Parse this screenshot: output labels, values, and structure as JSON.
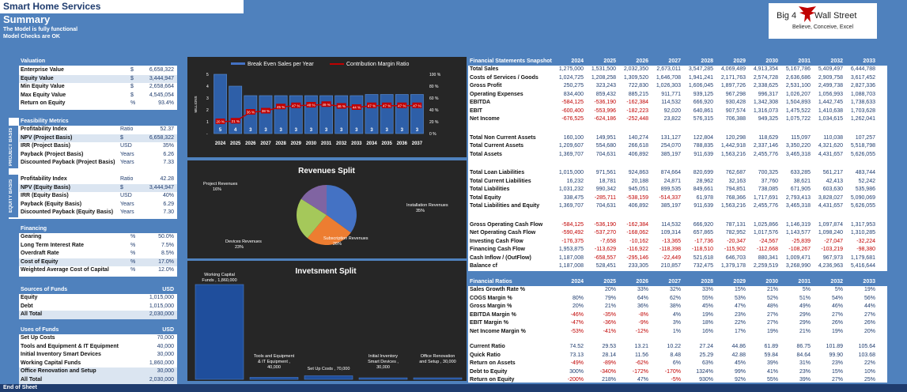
{
  "header": {
    "title": "Smart Home Services",
    "subtitle": "Summary",
    "note1": "The Model is fully functional",
    "note2": "Model Checks are OK"
  },
  "logo": {
    "word1": "Big 4",
    "word2": "Wall Street",
    "tagline": "Believe, Conceive, Excel"
  },
  "left": {
    "valuation": {
      "title": "Valuation",
      "rows": [
        {
          "label": "Enterprise Value",
          "unit": "$",
          "value": "6,658,322"
        },
        {
          "label": "Equity Value",
          "unit": "$",
          "value": "3,444,947"
        },
        {
          "label": "Min Equity Value",
          "unit": "$",
          "value": "2,658,664"
        },
        {
          "label": "Max Equity Value",
          "unit": "$",
          "value": "4,545,054"
        },
        {
          "label": "Return on Equity",
          "unit": "%",
          "value": "93.4%"
        }
      ]
    },
    "feasibility": {
      "title": "Feasibility Metrics",
      "project_tab": "PROJECT BASIS",
      "equity_tab": "EQUITY BASIS",
      "project_rows": [
        {
          "label": "Profitability Index",
          "unit": "Ratio",
          "value": "52.37"
        },
        {
          "label": "NPV (Project Basis)",
          "unit": "$",
          "value": "6,658,322"
        },
        {
          "label": "IRR (Project Basis)",
          "unit": "USD",
          "value": "35%"
        },
        {
          "label": "Payback  (Project Basis)",
          "unit": "Years",
          "value": "6.26"
        },
        {
          "label": "Discounted Payback  (Project Basis)",
          "unit": "Years",
          "value": "7.33"
        }
      ],
      "equity_rows": [
        {
          "label": "Profitability Index",
          "unit": "Ratio",
          "value": "42.28"
        },
        {
          "label": "NPV (Equity Basis)",
          "unit": "$",
          "value": "3,444,947"
        },
        {
          "label": "IRR (Equity Basis)",
          "unit": "USD",
          "value": "40%"
        },
        {
          "label": "Payback (Equity Basis)",
          "unit": "Years",
          "value": "6.29"
        },
        {
          "label": "Discounted Payback  (Equity Basis)",
          "unit": "Years",
          "value": "7.30"
        }
      ]
    },
    "financing": {
      "title": "Financing",
      "rows": [
        {
          "label": "Gearing",
          "unit": "%",
          "value": "50.0%"
        },
        {
          "label": "Long Term Interest Rate",
          "unit": "%",
          "value": "7.5%"
        },
        {
          "label": "Overdraft Rate",
          "unit": "%",
          "value": "8.5%"
        },
        {
          "label": "Cost of Equity",
          "unit": "%",
          "value": "17.0%"
        },
        {
          "label": "Weighted Average Cost of Capital",
          "unit": "%",
          "value": "12.0%"
        }
      ]
    },
    "sources": {
      "title": "Sources of Funds",
      "unit": "USD",
      "rows": [
        {
          "label": "Equity",
          "value": "1,015,000"
        },
        {
          "label": "Debt",
          "value": "1,015,000"
        },
        {
          "label": "All Total",
          "value": "2,030,000"
        }
      ]
    },
    "uses": {
      "title": "Uses of Funds",
      "unit": "USD",
      "rows": [
        {
          "label": "Set Up Costs",
          "value": "70,000"
        },
        {
          "label": "Tools and Equipment & IT Equipment",
          "value": "40,000"
        },
        {
          "label": "Initial Inventory Smart Devices",
          "value": "30,000"
        },
        {
          "label": "Working Capital Funds",
          "value": "1,860,000"
        },
        {
          "label": "Office Renovation and Setup",
          "value": "30,000"
        },
        {
          "label": "All Total",
          "value": "2,030,000"
        }
      ]
    }
  },
  "chart_data": [
    {
      "type": "bar",
      "title": "",
      "legend": [
        "Break Even Sales per Year",
        "Contribution Margin Ratio"
      ],
      "ylabel": "MILLIONS",
      "categories": [
        "2024",
        "2025",
        "2026",
        "2027",
        "2028",
        "2029",
        "2030",
        "2031",
        "2032",
        "2033",
        "2034",
        "2035",
        "2036",
        "2037"
      ],
      "series": [
        {
          "name": "Break Even Sales per Year",
          "labels": [
            "5",
            "4",
            "3",
            "3",
            "3",
            "3",
            "3",
            "3",
            "3",
            "3",
            "3",
            "3",
            "3",
            "3"
          ],
          "values": [
            5,
            4,
            3.2,
            3.2,
            3.2,
            3.2,
            3.2,
            3.2,
            3.2,
            3.2,
            3.3,
            3.3,
            3.3,
            3.3
          ]
        },
        {
          "name": "Contribution Margin Ratio",
          "values": [
            20,
            21,
            36,
            38,
            45,
            47,
            48,
            49,
            46,
            44,
            47,
            47,
            47,
            47
          ]
        }
      ],
      "ylim_left": [
        0,
        5
      ],
      "ylim_right": [
        0,
        100
      ],
      "left_ticks": [
        "5",
        "4",
        "3",
        "2",
        "1",
        "-"
      ],
      "right_ticks": [
        "100 %",
        "80 %",
        "60 %",
        "40 %",
        "20 %",
        "0 %"
      ]
    },
    {
      "type": "pie",
      "title": "Revenues Split",
      "slices": [
        {
          "name": "Installation Revenues",
          "value": 35,
          "label": "35%",
          "color": "#4472c4"
        },
        {
          "name": "Subscription Revenues",
          "value": 26,
          "label": "26%",
          "color": "#ed7d31"
        },
        {
          "name": "Devices Revenues",
          "value": 23,
          "label": "23%",
          "color": "#a5c85a"
        },
        {
          "name": "Project Revenues",
          "value": 16,
          "label": "16%",
          "color": "#8064a2"
        }
      ]
    },
    {
      "type": "bar",
      "title": "Invetsment Split",
      "categories": [
        "Working Capital Funds",
        "Tools and Equipment & IT Equipment",
        "Set Up Costs",
        "Initial Inventory Smart Devices",
        "Office Renovation and Setup"
      ],
      "values": [
        1860000,
        40000,
        70000,
        30000,
        30000
      ],
      "labels": [
        "Working Capital Funds , 1,860,000",
        "Tools and Equipment & IT Equipment , 40,000",
        "Set Up Costs , 70,000",
        "Initial Inventory Smart Devices , 30,000",
        "Office Renovation and Setup , 30,000"
      ]
    }
  ],
  "fin": {
    "title": "Financial Statements Snapshot",
    "years": [
      "2024",
      "2025",
      "2026",
      "2027",
      "2028",
      "2029",
      "2030",
      "2031",
      "2032",
      "2033"
    ],
    "groups": [
      [
        {
          "label": "Total Sales",
          "v": [
            "1,275,000",
            "1,531,500",
            "2,032,350",
            "2,673,011",
            "3,547,285",
            "4,069,489",
            "4,913,354",
            "5,167,786",
            "5,409,497",
            "6,444,788"
          ]
        },
        {
          "label": "Costs of Services / Goods",
          "v": [
            "1,024,725",
            "1,208,258",
            "1,309,520",
            "1,646,708",
            "1,941,241",
            "2,171,763",
            "2,574,728",
            "2,636,686",
            "2,909,758",
            "3,617,452"
          ]
        },
        {
          "label": "Gross Profit",
          "v": [
            "250,275",
            "323,243",
            "722,830",
            "1,026,303",
            "1,606,045",
            "1,897,726",
            "2,338,625",
            "2,531,100",
            "2,499,738",
            "2,827,336"
          ]
        },
        {
          "label": "Operating Expenses",
          "v": [
            "834,400",
            "859,432",
            "885,215",
            "911,771",
            "939,125",
            "967,298",
            "996,317",
            "1,026,207",
            "1,056,993",
            "1,088,703"
          ]
        },
        {
          "label": "EBITDA",
          "v": [
            "-584,125",
            "-536,190",
            "-162,384",
            "114,532",
            "666,920",
            "930,428",
            "1,342,308",
            "1,504,893",
            "1,442,745",
            "1,738,633"
          ]
        },
        {
          "label": "EBIT",
          "v": [
            "-600,400",
            "-553,996",
            "-182,223",
            "92,020",
            "640,861",
            "907,574",
            "1,316,073",
            "1,475,522",
            "1,410,638",
            "1,703,628"
          ]
        },
        {
          "label": "Net Income",
          "v": [
            "-676,525",
            "-624,186",
            "-252,448",
            "23,822",
            "576,315",
            "706,388",
            "949,325",
            "1,075,722",
            "1,034,615",
            "1,262,041"
          ]
        }
      ],
      [
        {
          "label": "Total Non Current Assets",
          "v": [
            "160,100",
            "149,951",
            "140,274",
            "131,127",
            "122,804",
            "120,298",
            "118,629",
            "115,097",
            "110,038",
            "107,257"
          ]
        },
        {
          "label": "Total Current Assets",
          "v": [
            "1,209,607",
            "554,680",
            "266,618",
            "254,070",
            "788,835",
            "1,442,918",
            "2,337,146",
            "3,350,220",
            "4,321,620",
            "5,518,798"
          ]
        },
        {
          "label": "Total Assets",
          "v": [
            "1,369,707",
            "704,631",
            "406,892",
            "385,197",
            "911,639",
            "1,563,216",
            "2,455,776",
            "3,465,318",
            "4,431,657",
            "5,626,055"
          ]
        }
      ],
      [
        {
          "label": "Total Loan Liabilities",
          "v": [
            "1,015,000",
            "971,561",
            "924,863",
            "874,664",
            "820,699",
            "762,687",
            "700,325",
            "633,285",
            "561,217",
            "483,744"
          ]
        },
        {
          "label": "Total Current Liabilities",
          "v": [
            "16,232",
            "18,781",
            "20,188",
            "24,871",
            "28,962",
            "32,163",
            "37,760",
            "38,621",
            "42,413",
            "52,242"
          ]
        },
        {
          "label": "Total Liabilities",
          "v": [
            "1,031,232",
            "990,342",
            "945,051",
            "899,535",
            "849,661",
            "794,851",
            "738,085",
            "671,905",
            "603,630",
            "535,986"
          ]
        },
        {
          "label": "Total Equity",
          "v": [
            "338,475",
            "-285,711",
            "-538,159",
            "-514,337",
            "61,978",
            "768,366",
            "1,717,691",
            "2,793,413",
            "3,828,027",
            "5,090,069"
          ]
        },
        {
          "label": "Total Liabilities and Equity",
          "v": [
            "1,369,707",
            "704,631",
            "406,892",
            "385,197",
            "911,639",
            "1,563,216",
            "2,455,776",
            "3,465,318",
            "4,431,657",
            "5,626,055"
          ]
        }
      ],
      [
        {
          "label": "Gross Operating Cash Flow",
          "v": [
            "-584,125",
            "-536,190",
            "-162,384",
            "114,532",
            "666,920",
            "787,131",
            "1,025,866",
            "1,146,319",
            "1,097,874",
            "1,317,953"
          ]
        },
        {
          "label": "Net Operating Cash Flow",
          "v": [
            "-590,492",
            "-537,270",
            "-168,062",
            "109,314",
            "657,865",
            "782,952",
            "1,017,576",
            "1,143,577",
            "1,098,240",
            "1,310,285"
          ]
        },
        {
          "label": "Investing Cash Flow",
          "v": [
            "-176,375",
            "-7,658",
            "-10,162",
            "-13,365",
            "-17,736",
            "-20,347",
            "-24,567",
            "-25,839",
            "-27,047",
            "-32,224"
          ]
        },
        {
          "label": "Financing Cash Flow",
          "v": [
            "1,953,875",
            "-113,629",
            "-116,922",
            "-118,398",
            "-118,510",
            "-115,902",
            "-112,668",
            "-108,267",
            "-103,219",
            "-98,380"
          ]
        },
        {
          "label": "Cash Inflow / (OutFlow)",
          "v": [
            "1,187,008",
            "-658,557",
            "-295,146",
            "-22,449",
            "521,618",
            "646,703",
            "880,341",
            "1,009,471",
            "967,973",
            "1,179,681"
          ]
        },
        {
          "label": "Balance cf",
          "v": [
            "1,187,008",
            "528,451",
            "233,305",
            "210,857",
            "732,475",
            "1,379,178",
            "2,259,519",
            "3,268,990",
            "4,236,963",
            "5,416,644"
          ]
        }
      ]
    ]
  },
  "ratios": {
    "title": "Financial Ratios",
    "years": [
      "2024",
      "2025",
      "2026",
      "2027",
      "2028",
      "2029",
      "2030",
      "2031",
      "2032",
      "2033"
    ],
    "groups": [
      [
        {
          "label": "Sales Growth Rate %",
          "v": [
            "",
            "20%",
            "33%",
            "32%",
            "33%",
            "15%",
            "21%",
            "5%",
            "5%",
            "19%"
          ]
        },
        {
          "label": "COGS Margin %",
          "v": [
            "80%",
            "79%",
            "64%",
            "62%",
            "55%",
            "53%",
            "52%",
            "51%",
            "54%",
            "56%"
          ]
        },
        {
          "label": "Gross Margin %",
          "v": [
            "20%",
            "21%",
            "36%",
            "38%",
            "45%",
            "47%",
            "48%",
            "49%",
            "46%",
            "44%"
          ]
        },
        {
          "label": "EBITDA Margin %",
          "v": [
            "-46%",
            "-35%",
            "-8%",
            "4%",
            "19%",
            "23%",
            "27%",
            "29%",
            "27%",
            "27%"
          ]
        },
        {
          "label": "EBIT Margin %",
          "v": [
            "-47%",
            "-36%",
            "-9%",
            "3%",
            "18%",
            "22%",
            "27%",
            "29%",
            "26%",
            "26%"
          ]
        },
        {
          "label": "Net Income Margin %",
          "v": [
            "-53%",
            "-41%",
            "-12%",
            "1%",
            "16%",
            "17%",
            "19%",
            "21%",
            "19%",
            "20%"
          ]
        }
      ],
      [
        {
          "label": "Current Ratio",
          "v": [
            "74.52",
            "29.53",
            "13.21",
            "10.22",
            "27.24",
            "44.86",
            "61.89",
            "86.75",
            "101.89",
            "105.64"
          ]
        },
        {
          "label": "Quick Ratio",
          "v": [
            "73.13",
            "28.14",
            "11.56",
            "8.48",
            "25.29",
            "42.88",
            "59.84",
            "84.64",
            "99.90",
            "103.68"
          ]
        },
        {
          "label": "Return on Assets",
          "v": [
            "-49%",
            "-89%",
            "-62%",
            "6%",
            "63%",
            "45%",
            "39%",
            "31%",
            "23%",
            "22%"
          ]
        },
        {
          "label": "Debt to Equity",
          "v": [
            "300%",
            "-340%",
            "-172%",
            "-170%",
            "1324%",
            "99%",
            "41%",
            "23%",
            "15%",
            "10%"
          ]
        },
        {
          "label": "Return on Equity",
          "v": [
            "-200%",
            "218%",
            "47%",
            "-5%",
            "930%",
            "92%",
            "55%",
            "39%",
            "27%",
            "25%"
          ]
        }
      ]
    ]
  },
  "footer": "End of Sheet"
}
